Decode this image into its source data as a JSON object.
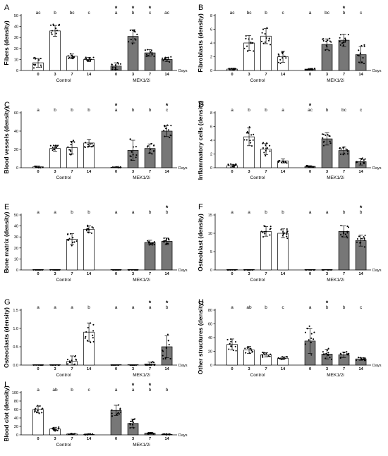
{
  "figure": {
    "days_label": "Days",
    "group_labels": [
      "Control",
      "MEK1/2i"
    ],
    "colors": {
      "control_bar": "#ffffff",
      "mek_bar": "#777777",
      "axis": "#000000",
      "point": "#000000"
    }
  },
  "chart_data": [
    {
      "panel": "A",
      "type": "bar",
      "ylabel": "Fibers (density)",
      "ylim": [
        0,
        50
      ],
      "yticks": [
        0,
        10,
        20,
        30,
        40,
        50
      ],
      "categories": [
        "0",
        "3",
        "7",
        "14"
      ],
      "series": [
        {
          "name": "Control",
          "values": [
            7,
            36,
            13,
            10
          ],
          "errors": [
            4,
            5,
            2,
            2
          ],
          "letters": [
            "ac",
            "b",
            "bc",
            "c"
          ],
          "stars": [
            false,
            false,
            false,
            false
          ]
        },
        {
          "name": "MEK1/2i",
          "values": [
            4,
            31,
            16,
            10
          ],
          "errors": [
            3,
            6,
            3,
            2
          ],
          "letters": [
            "a",
            "b",
            "c",
            "ac"
          ],
          "stars": [
            true,
            true,
            true,
            false
          ]
        }
      ]
    },
    {
      "panel": "B",
      "type": "bar",
      "ylabel": "Fibroblasts (density)",
      "ylim": [
        0,
        8
      ],
      "yticks": [
        0,
        2,
        4,
        6,
        8
      ],
      "categories": [
        "0",
        "3",
        "7",
        "14"
      ],
      "series": [
        {
          "name": "Control",
          "values": [
            0.2,
            4,
            5,
            2
          ],
          "errors": [
            0.1,
            1.1,
            1.1,
            0.8
          ],
          "letters": [
            "ac",
            "bc",
            "b",
            "c"
          ],
          "stars": [
            false,
            false,
            false,
            false
          ]
        },
        {
          "name": "MEK1/2i",
          "values": [
            0.2,
            3.8,
            4.4,
            2.3
          ],
          "errors": [
            0.1,
            0.8,
            0.9,
            1.2
          ],
          "letters": [
            "a",
            "bc",
            "b",
            "c"
          ],
          "stars": [
            false,
            false,
            true,
            false
          ]
        }
      ]
    },
    {
      "panel": "C",
      "type": "bar",
      "ylabel": "Blood vessels (density)",
      "ylim": [
        0,
        60
      ],
      "yticks": [
        0,
        20,
        40,
        60
      ],
      "categories": [
        "0",
        "3",
        "7",
        "14"
      ],
      "series": [
        {
          "name": "Control",
          "values": [
            1,
            21,
            22,
            27
          ],
          "errors": [
            1,
            3,
            7,
            4
          ],
          "letters": [
            "a",
            "b",
            "b",
            "b"
          ],
          "stars": [
            false,
            false,
            false,
            false
          ]
        },
        {
          "name": "MEK1/2i",
          "values": [
            0.5,
            19,
            21,
            40
          ],
          "errors": [
            0.5,
            11,
            5,
            6
          ],
          "letters": [
            "a",
            "b",
            "b",
            "c"
          ],
          "stars": [
            true,
            false,
            false,
            true
          ]
        }
      ]
    },
    {
      "panel": "D",
      "type": "bar",
      "ylabel": "Inflammatory cells (density)",
      "ylim": [
        0,
        8
      ],
      "yticks": [
        0,
        2,
        4,
        6,
        8
      ],
      "categories": [
        "0",
        "3",
        "7",
        "14"
      ],
      "series": [
        {
          "name": "Control",
          "values": [
            0.3,
            4.5,
            2.7,
            1
          ],
          "errors": [
            0.2,
            1.3,
            0.8,
            0.3
          ],
          "letters": [
            "a",
            "b",
            "b",
            "a"
          ],
          "stars": [
            false,
            false,
            false,
            false
          ]
        },
        {
          "name": "MEK1/2i",
          "values": [
            0.2,
            4.2,
            2.5,
            0.9
          ],
          "errors": [
            0.1,
            0.9,
            0.5,
            0.5
          ],
          "letters": [
            "ac",
            "b",
            "bc",
            "c"
          ],
          "stars": [
            true,
            false,
            false,
            false
          ]
        }
      ]
    },
    {
      "panel": "E",
      "type": "bar",
      "ylabel": "Bone matrix (density)",
      "ylim": [
        0,
        50
      ],
      "yticks": [
        0,
        10,
        20,
        30,
        40,
        50
      ],
      "categories": [
        "0",
        "3",
        "7",
        "14"
      ],
      "series": [
        {
          "name": "Control",
          "values": [
            0,
            0,
            28,
            37
          ],
          "errors": [
            0,
            0,
            5,
            3
          ],
          "letters": [
            "a",
            "a",
            "b",
            "b"
          ],
          "stars": [
            false,
            false,
            false,
            false
          ]
        },
        {
          "name": "MEK1/2i",
          "values": [
            0,
            0,
            25,
            26
          ],
          "errors": [
            0,
            0,
            2,
            3
          ],
          "letters": [
            "a",
            "a",
            "b",
            "b"
          ],
          "stars": [
            false,
            false,
            false,
            true
          ]
        }
      ]
    },
    {
      "panel": "F",
      "type": "bar",
      "ylabel": "Osteoblast (density)",
      "ylim": [
        0,
        15
      ],
      "yticks": [
        0,
        5,
        10,
        15
      ],
      "categories": [
        "0",
        "3",
        "7",
        "14"
      ],
      "series": [
        {
          "name": "Control",
          "values": [
            0,
            0,
            10.5,
            10
          ],
          "errors": [
            0,
            0,
            1.3,
            1.2
          ],
          "letters": [
            "a",
            "a",
            "b",
            "b"
          ],
          "stars": [
            false,
            false,
            false,
            false
          ]
        },
        {
          "name": "MEK1/2i",
          "values": [
            0,
            0,
            10.5,
            8
          ],
          "errors": [
            0,
            0,
            1.5,
            1.5
          ],
          "letters": [
            "a",
            "a",
            "b",
            "b"
          ],
          "stars": [
            false,
            false,
            false,
            true
          ]
        }
      ]
    },
    {
      "panel": "G",
      "type": "bar",
      "ylabel": "Osteoclasts (density)",
      "ylim": [
        0,
        1.5
      ],
      "yticks": [
        0.0,
        0.5,
        1.0,
        1.5
      ],
      "ytick_labels": [
        "0.0",
        "0.5",
        "1.0",
        "1.5"
      ],
      "categories": [
        "0",
        "3",
        "7",
        "14"
      ],
      "series": [
        {
          "name": "Control",
          "values": [
            0,
            0,
            0.1,
            0.9
          ],
          "errors": [
            0,
            0,
            0.15,
            0.25
          ],
          "letters": [
            "a",
            "a",
            "a",
            "b"
          ],
          "stars": [
            false,
            false,
            false,
            false
          ]
        },
        {
          "name": "MEK1/2i",
          "values": [
            0,
            0,
            0.03,
            0.5
          ],
          "errors": [
            0,
            0,
            0.05,
            0.3
          ],
          "letters": [
            "a",
            "a",
            "a",
            "b"
          ],
          "stars": [
            false,
            false,
            true,
            true
          ]
        }
      ]
    },
    {
      "panel": "H",
      "type": "bar",
      "ylabel": "Other structures (density)",
      "ylim": [
        0,
        80
      ],
      "yticks": [
        0,
        20,
        40,
        60,
        80
      ],
      "categories": [
        "0",
        "3",
        "7",
        "14"
      ],
      "series": [
        {
          "name": "Control",
          "values": [
            30,
            22,
            15,
            10
          ],
          "errors": [
            8,
            5,
            3,
            2
          ],
          "letters": [
            "a",
            "ab",
            "b",
            "c"
          ],
          "stars": [
            false,
            false,
            false,
            false
          ]
        },
        {
          "name": "MEK1/2i",
          "values": [
            35,
            16,
            15,
            9
          ],
          "errors": [
            18,
            7,
            4,
            2
          ],
          "letters": [
            "a",
            "b",
            "b",
            "c"
          ],
          "stars": [
            false,
            true,
            false,
            false
          ]
        }
      ]
    },
    {
      "panel": "I",
      "type": "bar",
      "ylabel": "Blood clot (density)",
      "ylim": [
        0,
        100
      ],
      "yticks": [
        0,
        20,
        40,
        60,
        80,
        100
      ],
      "categories": [
        "0",
        "3",
        "7",
        "14"
      ],
      "series": [
        {
          "name": "Control",
          "values": [
            60,
            14,
            2,
            1
          ],
          "errors": [
            8,
            4,
            1,
            1
          ],
          "letters": [
            "a",
            "ab",
            "b",
            "c"
          ],
          "stars": [
            false,
            false,
            false,
            false
          ]
        },
        {
          "name": "MEK1/2i",
          "values": [
            58,
            27,
            4,
            1
          ],
          "errors": [
            12,
            10,
            2,
            1
          ],
          "letters": [
            "a",
            "a",
            "b",
            "b"
          ],
          "stars": [
            false,
            true,
            true,
            false
          ]
        }
      ]
    }
  ]
}
